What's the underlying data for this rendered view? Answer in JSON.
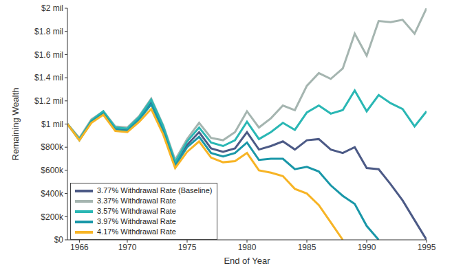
{
  "chart_data": {
    "type": "line",
    "x_label": "End of Year",
    "y_label": "Remaining Wealth",
    "x": [
      1965,
      1966,
      1967,
      1968,
      1969,
      1970,
      1971,
      1972,
      1973,
      1974,
      1975,
      1976,
      1977,
      1978,
      1979,
      1980,
      1981,
      1982,
      1983,
      1984,
      1985,
      1986,
      1987,
      1988,
      1989,
      1990,
      1991,
      1992,
      1993,
      1994,
      1995
    ],
    "xlim": [
      1965,
      1995
    ],
    "xticks": [
      1966,
      1970,
      1975,
      1980,
      1985,
      1990,
      1995
    ],
    "ylim": [
      0,
      2000000
    ],
    "yticks": [
      {
        "value": 0,
        "label": "$0"
      },
      {
        "value": 200000,
        "label": "$200k"
      },
      {
        "value": 400000,
        "label": "$400k"
      },
      {
        "value": 600000,
        "label": "$600k"
      },
      {
        "value": 800000,
        "label": "$800k"
      },
      {
        "value": 1000000,
        "label": "$1 mil"
      },
      {
        "value": 1200000,
        "label": "$1.2 mil"
      },
      {
        "value": 1400000,
        "label": "$1.4 mil"
      },
      {
        "value": 1600000,
        "label": "$1.6 mil"
      },
      {
        "value": 1800000,
        "label": "$1.8 mil"
      },
      {
        "value": 2000000,
        "label": "$2 mil"
      }
    ],
    "grid": false,
    "legend": "lower left",
    "series": [
      {
        "name": "3.77% Withdrawal Rate (Baseline)",
        "color": "#4c5a86",
        "values": [
          1000000,
          870000,
          1030000,
          1100000,
          960000,
          950000,
          1050000,
          1190000,
          960000,
          650000,
          820000,
          930000,
          790000,
          760000,
          790000,
          930000,
          780000,
          810000,
          850000,
          780000,
          860000,
          870000,
          780000,
          750000,
          800000,
          620000,
          610000,
          480000,
          340000,
          170000,
          0
        ]
      },
      {
        "name": "3.37% Withdrawal Rate",
        "color": "#a5b5b0",
        "values": [
          1000000,
          880000,
          1040000,
          1110000,
          980000,
          970000,
          1070000,
          1220000,
          990000,
          690000,
          870000,
          1010000,
          880000,
          860000,
          930000,
          1110000,
          970000,
          1050000,
          1160000,
          1120000,
          1330000,
          1440000,
          1390000,
          1480000,
          1780000,
          1590000,
          1890000,
          1880000,
          1900000,
          1780000,
          2000000
        ]
      },
      {
        "name": "3.57% Withdrawal Rate",
        "color": "#2ab7b4",
        "values": [
          1000000,
          870000,
          1030000,
          1110000,
          970000,
          960000,
          1060000,
          1210000,
          980000,
          670000,
          850000,
          970000,
          840000,
          810000,
          860000,
          1020000,
          870000,
          930000,
          1010000,
          950000,
          1100000,
          1160000,
          1090000,
          1120000,
          1290000,
          1110000,
          1250000,
          1180000,
          1130000,
          980000,
          1110000
        ]
      },
      {
        "name": "3.97% Withdrawal Rate",
        "color": "#1997a8",
        "values": [
          1000000,
          860000,
          1020000,
          1090000,
          950000,
          940000,
          1040000,
          1170000,
          940000,
          640000,
          800000,
          890000,
          750000,
          720000,
          750000,
          840000,
          690000,
          700000,
          700000,
          610000,
          630000,
          590000,
          470000,
          380000,
          310000,
          120000,
          0,
          null,
          null,
          null,
          null
        ]
      },
      {
        "name": "4.17% Withdrawal Rate",
        "color": "#f7b425",
        "values": [
          1000000,
          860000,
          1010000,
          1080000,
          940000,
          930000,
          1020000,
          1130000,
          910000,
          620000,
          760000,
          850000,
          710000,
          670000,
          680000,
          750000,
          600000,
          580000,
          550000,
          440000,
          400000,
          300000,
          150000,
          0,
          null,
          null,
          null,
          null,
          null,
          null,
          null
        ]
      }
    ]
  }
}
